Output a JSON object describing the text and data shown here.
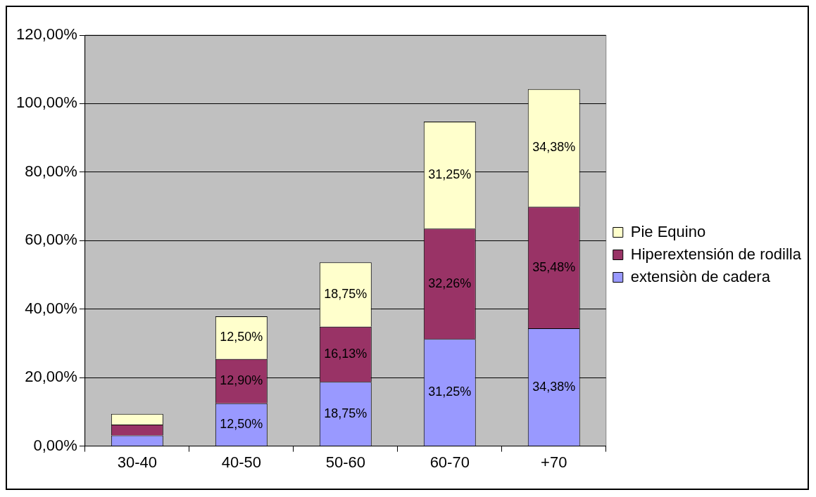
{
  "chart_data": {
    "type": "bar",
    "stacked": true,
    "categories": [
      "30-40",
      "40-50",
      "50-60",
      "60-70",
      "+70"
    ],
    "series": [
      {
        "name": "extensiòn de cadera",
        "color": "#9999ff",
        "values": [
          3.1,
          12.5,
          18.75,
          31.25,
          34.38
        ],
        "value_labels": [
          null,
          "12,50%",
          "18,75%",
          "31,25%",
          "34,38%"
        ]
      },
      {
        "name": "Hiperextensión de rodilla",
        "color": "#993366",
        "values": [
          3.2,
          12.9,
          16.13,
          32.26,
          35.48
        ],
        "value_labels": [
          null,
          "12,90%",
          "16,13%",
          "32,26%",
          "35,48%"
        ]
      },
      {
        "name": "Pie Equino",
        "color": "#ffffcc",
        "values": [
          3.1,
          12.5,
          18.75,
          31.25,
          34.38
        ],
        "value_labels": [
          null,
          "12,50%",
          "18,75%",
          "31,25%",
          "34,38%"
        ]
      }
    ],
    "ylim": [
      0,
      120
    ],
    "yticks": [
      {
        "value": 0,
        "label": "0,00%"
      },
      {
        "value": 20,
        "label": "20,00%"
      },
      {
        "value": 40,
        "label": "40,00%"
      },
      {
        "value": 60,
        "label": "60,00%"
      },
      {
        "value": 80,
        "label": "80,00%"
      },
      {
        "value": 100,
        "label": "100,00%"
      },
      {
        "value": 120,
        "label": "120,00%"
      }
    ],
    "grid": "y",
    "legend": "right"
  }
}
